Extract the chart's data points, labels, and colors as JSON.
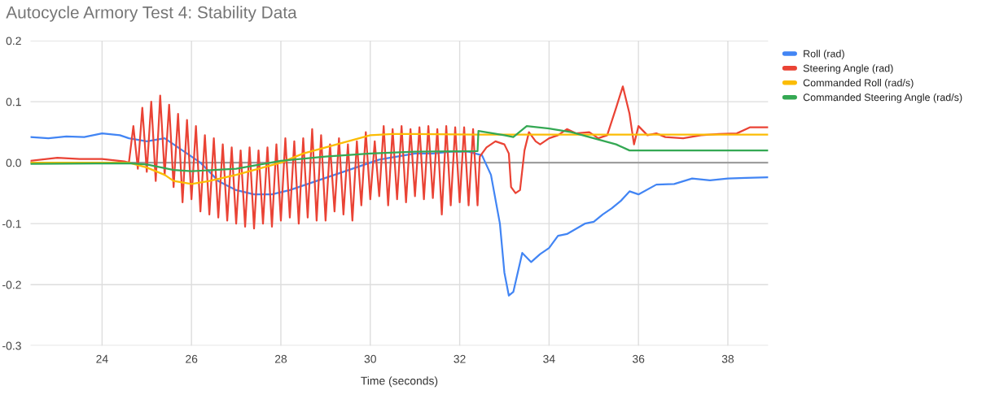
{
  "chart_data": {
    "type": "line",
    "title": "Autocycle Armory Test 4: Stability Data",
    "xlabel": "Time (seconds)",
    "xlim": [
      22.4,
      38.9
    ],
    "xticks": [
      24,
      26,
      28,
      30,
      32,
      34,
      36,
      38
    ],
    "ylim": [
      -0.3,
      0.2
    ],
    "yticks": [
      {
        "value": 0.2,
        "label": "0.2"
      },
      {
        "value": 0.1,
        "label": "0.1"
      },
      {
        "value": 0,
        "label": "0.0"
      },
      {
        "value": -0.1,
        "label": "-0.1"
      },
      {
        "value": -0.2,
        "label": "-0.2"
      },
      {
        "value": -0.3,
        "label": "-0.3"
      }
    ],
    "grid": true,
    "legend": "top right",
    "marker": "none",
    "line_style": "solid",
    "ref_lines": [
      {
        "axis": "y",
        "value": 0,
        "color": "#9e9e9e"
      }
    ],
    "series": [
      {
        "name": "Roll (rad)",
        "color": "#4285f4",
        "x": [
          22.4,
          22.8,
          23.2,
          23.6,
          24.0,
          24.4,
          24.6,
          25.0,
          25.4,
          25.8,
          26.2,
          26.6,
          27.0,
          27.4,
          27.8,
          28.2,
          28.6,
          29.0,
          29.4,
          29.8,
          30.2,
          30.6,
          31.0,
          31.4,
          31.8,
          32.2,
          32.5,
          32.7,
          32.9,
          33.0,
          33.1,
          33.2,
          33.4,
          33.6,
          33.8,
          34.0,
          34.2,
          34.4,
          34.8,
          35.0,
          35.2,
          35.4,
          35.6,
          35.8,
          36.0,
          36.4,
          36.8,
          37.2,
          37.6,
          38.0,
          38.4,
          38.9
        ],
        "values": [
          0.042,
          0.04,
          0.043,
          0.042,
          0.048,
          0.045,
          0.04,
          0.035,
          0.04,
          0.02,
          0.0,
          -0.03,
          -0.045,
          -0.052,
          -0.052,
          -0.045,
          -0.035,
          -0.025,
          -0.015,
          -0.005,
          0.005,
          0.01,
          0.015,
          0.015,
          0.018,
          0.018,
          0.012,
          -0.02,
          -0.1,
          -0.18,
          -0.218,
          -0.212,
          -0.148,
          -0.163,
          -0.15,
          -0.14,
          -0.12,
          -0.117,
          -0.1,
          -0.097,
          -0.085,
          -0.075,
          -0.063,
          -0.047,
          -0.052,
          -0.036,
          -0.035,
          -0.026,
          -0.029,
          -0.026,
          -0.025,
          -0.024
        ]
      },
      {
        "name": "Steering Angle (rad)",
        "color": "#ea4335",
        "x": [
          22.4,
          23.0,
          23.5,
          24.0,
          24.5,
          24.6,
          24.7,
          24.8,
          24.9,
          25.0,
          25.1,
          25.2,
          25.3,
          25.4,
          25.5,
          25.6,
          25.7,
          25.8,
          25.9,
          26.0,
          26.1,
          26.2,
          26.3,
          26.4,
          26.5,
          26.6,
          26.7,
          26.8,
          26.9,
          27.0,
          27.1,
          27.2,
          27.3,
          27.4,
          27.5,
          27.6,
          27.7,
          27.8,
          27.9,
          28.0,
          28.1,
          28.2,
          28.3,
          28.4,
          28.5,
          28.6,
          28.7,
          28.8,
          28.9,
          29.0,
          29.1,
          29.2,
          29.3,
          29.4,
          29.5,
          29.6,
          29.7,
          29.8,
          29.9,
          30.0,
          30.1,
          30.2,
          30.3,
          30.4,
          30.5,
          30.6,
          30.7,
          30.8,
          30.9,
          31.0,
          31.1,
          31.2,
          31.3,
          31.4,
          31.5,
          31.6,
          31.7,
          31.8,
          31.9,
          32.0,
          32.1,
          32.2,
          32.3,
          32.4,
          32.45,
          32.6,
          32.8,
          33.0,
          33.1,
          33.15,
          33.25,
          33.35,
          33.45,
          33.55,
          33.7,
          33.8,
          34.0,
          34.2,
          34.4,
          34.6,
          34.9,
          35.1,
          35.3,
          35.5,
          35.65,
          35.8,
          35.9,
          36.0,
          36.2,
          36.4,
          36.6,
          37.0,
          37.4,
          37.8,
          38.2,
          38.5,
          38.9
        ],
        "values": [
          0.003,
          0.008,
          0.006,
          0.006,
          0.002,
          0.0,
          0.06,
          -0.01,
          0.09,
          -0.015,
          0.1,
          -0.03,
          0.11,
          -0.02,
          0.095,
          -0.04,
          0.08,
          -0.065,
          0.07,
          -0.06,
          0.06,
          -0.08,
          0.045,
          -0.085,
          0.04,
          -0.09,
          0.03,
          -0.095,
          0.025,
          -0.1,
          0.02,
          -0.105,
          0.025,
          -0.108,
          0.02,
          -0.1,
          0.025,
          -0.105,
          0.03,
          -0.095,
          0.04,
          -0.09,
          0.035,
          -0.1,
          0.04,
          -0.09,
          0.055,
          -0.095,
          0.045,
          -0.095,
          0.03,
          -0.08,
          0.04,
          -0.085,
          0.03,
          -0.095,
          0.035,
          -0.07,
          0.05,
          -0.06,
          0.035,
          -0.055,
          0.06,
          -0.07,
          0.055,
          -0.06,
          0.06,
          -0.065,
          0.055,
          -0.055,
          0.058,
          -0.06,
          0.06,
          -0.058,
          0.055,
          -0.085,
          0.06,
          -0.07,
          0.058,
          -0.065,
          0.058,
          -0.07,
          0.055,
          -0.07,
          0.01,
          0.025,
          0.035,
          0.03,
          0.015,
          -0.04,
          -0.05,
          -0.045,
          0.02,
          0.05,
          0.035,
          0.03,
          0.04,
          0.045,
          0.055,
          0.048,
          0.05,
          0.04,
          0.045,
          0.09,
          0.125,
          0.08,
          0.03,
          0.06,
          0.045,
          0.048,
          0.042,
          0.04,
          0.045,
          0.047,
          0.048,
          0.058,
          0.058
        ]
      },
      {
        "name": "Commanded Roll (rad/s)",
        "color": "#fbbc04",
        "x": [
          22.4,
          24.6,
          25.0,
          25.4,
          25.6,
          26.0,
          26.4,
          27.0,
          27.5,
          28.0,
          28.5,
          29.0,
          29.5,
          30.0,
          30.5,
          31.0,
          32.4,
          38.9
        ],
        "values": [
          0.0,
          0.0,
          -0.008,
          -0.02,
          -0.03,
          -0.035,
          -0.03,
          -0.02,
          -0.01,
          0.0,
          0.015,
          0.025,
          0.035,
          0.045,
          0.047,
          0.047,
          0.046,
          0.046
        ]
      },
      {
        "name": "Commanded Steering Angle (rad/s)",
        "color": "#34a853",
        "x": [
          22.4,
          24.6,
          25.0,
          25.6,
          26.0,
          27.0,
          28.0,
          29.0,
          30.0,
          31.0,
          32.4,
          32.42,
          33.0,
          33.2,
          33.5,
          34.0,
          34.5,
          35.0,
          35.5,
          35.8,
          36.2,
          38.9
        ],
        "values": [
          -0.002,
          -0.001,
          -0.003,
          -0.012,
          -0.014,
          -0.01,
          0.003,
          0.01,
          0.015,
          0.018,
          0.019,
          0.052,
          0.045,
          0.042,
          0.06,
          0.056,
          0.05,
          0.04,
          0.03,
          0.02,
          0.02,
          0.02
        ]
      }
    ]
  }
}
